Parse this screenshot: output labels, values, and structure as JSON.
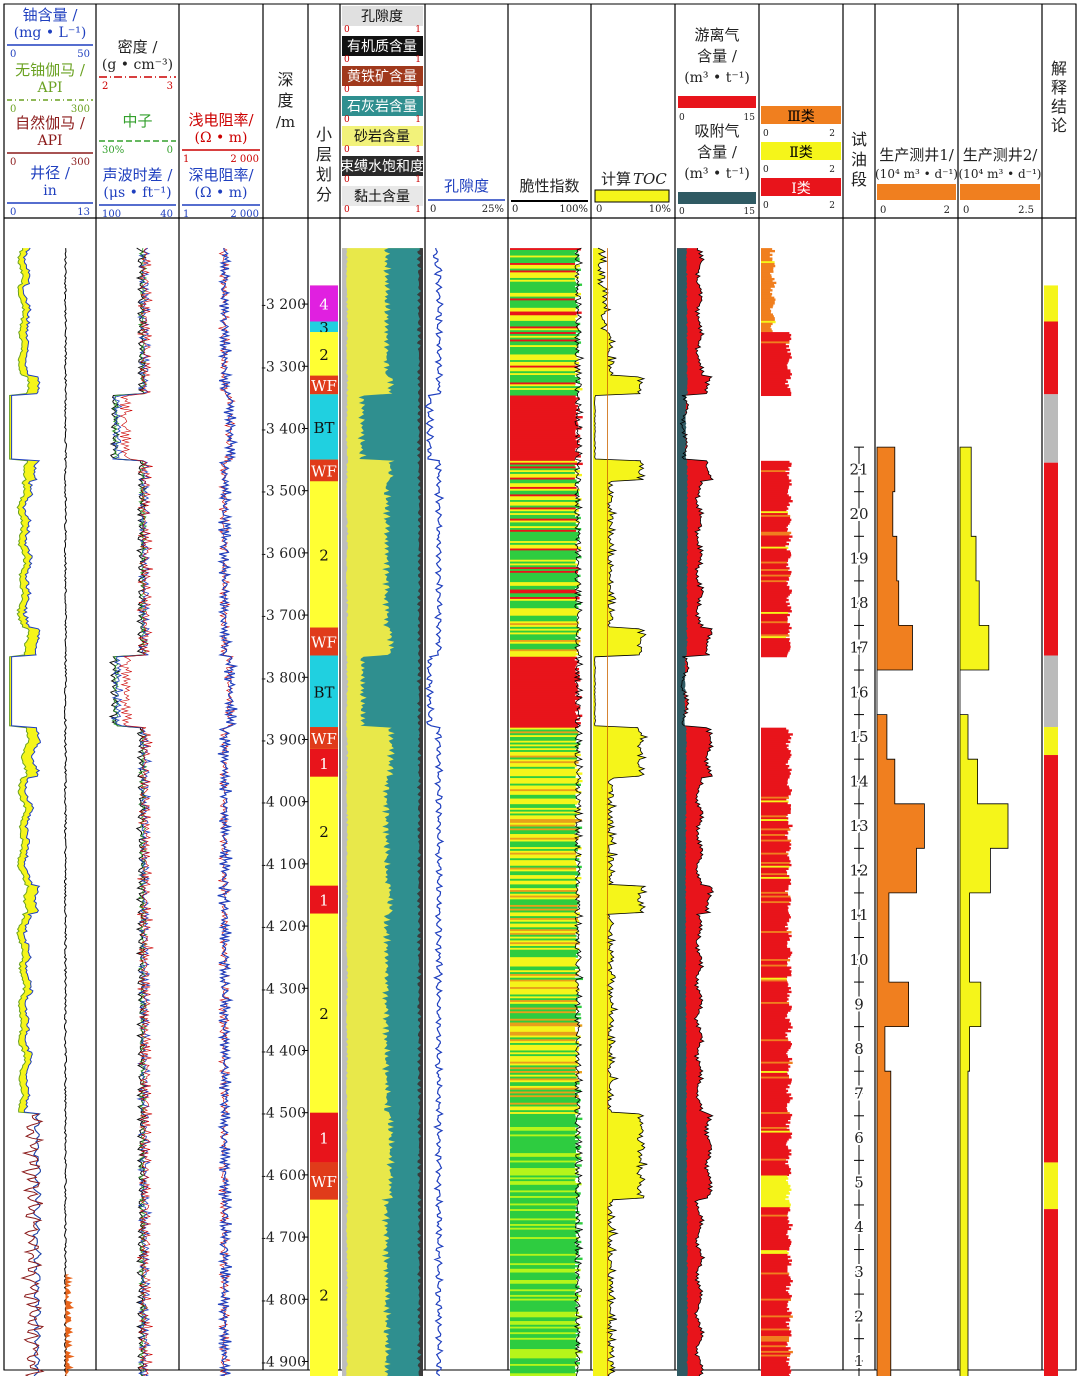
{
  "tracks": {
    "t1": {
      "curves": [
        {
          "label": "铀含量 /",
          "unit": "(mg • L⁻¹)",
          "min": "0",
          "max": "50",
          "color": "#1f3fbf"
        },
        {
          "label": "无铀伽马 /",
          "unit": "API",
          "min": "0",
          "max": "300",
          "color": "#6aa121"
        },
        {
          "label": "自然伽马 /",
          "unit": "API",
          "min": "0",
          "max": "300",
          "color": "#8b1a1a"
        },
        {
          "label": "井径 /",
          "unit": "in",
          "min": "0",
          "max": "13",
          "color": "#1f3fbf"
        }
      ]
    },
    "t2": {
      "curves": [
        {
          "label": "密度 /",
          "unit": "(g • cm⁻³)",
          "min": "2",
          "max": "3",
          "color": "#cc0000"
        },
        {
          "label": "中子",
          "unit": "",
          "min": "30%",
          "max": "0",
          "color": "#33a02c"
        },
        {
          "label": "声波时差 /",
          "unit": "(μs • ft⁻¹)",
          "min": "100",
          "max": "40",
          "color": "#1f3fbf"
        }
      ]
    },
    "t3": {
      "curves": [
        {
          "label": "浅电阻率/",
          "unit": "(Ω • m)",
          "min": "1",
          "max": "2 000",
          "color": "#cc0000"
        },
        {
          "label": "深电阻率/",
          "unit": "(Ω • m)",
          "min": "1",
          "max": "2 000",
          "color": "#1f3fbf"
        }
      ]
    },
    "depth": {
      "label": "深度",
      "unit": "/m"
    },
    "layers": {
      "label": "小层划分"
    },
    "mineral": {
      "items": [
        {
          "label": "孔隙度",
          "color": "#d8d8d8"
        },
        {
          "label": "有机质含量",
          "color": "#111111"
        },
        {
          "label": "黄铁矿含量",
          "color": "#a0391c"
        },
        {
          "label": "石灰岩含量",
          "color": "#2f8f8f"
        },
        {
          "label": "砂岩含量",
          "color": "#e8e84a"
        },
        {
          "label": "束缚水饱和度",
          "color": "#2a2a2a"
        },
        {
          "label": "黏土含量",
          "color": "#bdbdbd"
        }
      ],
      "scale_min": "0",
      "scale_max": "1"
    },
    "porosity": {
      "label": "孔隙度",
      "min": "0",
      "max": "25%"
    },
    "brittle": {
      "label": "脆性指数",
      "min": "0",
      "max": "100%"
    },
    "toc": {
      "label": "计算",
      "label_italic": "TOC",
      "min": "0",
      "max": "10%"
    },
    "gas": {
      "free_label": "游离气",
      "free_label2": "含量 /",
      "free_unit": "(m³ • t⁻¹)",
      "ads_label": "吸附气",
      "ads_label2": "含量 /",
      "ads_unit": "(m³ • t⁻¹)",
      "min": "0",
      "max": "15"
    },
    "class": {
      "items": [
        {
          "label": "Ⅲ类",
          "min": "0",
          "max": "2",
          "color": "#f07f1f"
        },
        {
          "label": "Ⅱ类",
          "min": "0",
          "max": "2",
          "color": "#f5f51a"
        },
        {
          "label": "Ⅰ类",
          "min": "0",
          "max": "2",
          "color": "#e8141b"
        }
      ]
    },
    "test": {
      "label": "试油段"
    },
    "prod1": {
      "label": "生产测井1/",
      "unit": "(10⁴ m³ • d⁻¹)",
      "min": "0",
      "max": "2"
    },
    "prod2": {
      "label": "生产测井2/",
      "unit": "(10⁴ m³ • d⁻¹)",
      "min": "0",
      "max": "2.5"
    },
    "interp": {
      "label": "解释结论"
    }
  },
  "chart_data": {
    "type": "well-log",
    "depth_range": [
      3100,
      4950
    ],
    "depth_ticks": [
      "3 200",
      "3 300",
      "3 400",
      "3 500",
      "3 600",
      "3 700",
      "3 800",
      "3 900",
      "4 000",
      "4 100",
      "4 200",
      "4 300",
      "4 400",
      "4 500",
      "4 600",
      "4 700",
      "4 800",
      "4 900"
    ],
    "layers": [
      {
        "label": "4",
        "top": 3170,
        "bottom": 3228,
        "color": "#e020e0"
      },
      {
        "label": "3",
        "top": 3228,
        "bottom": 3245,
        "color": "#20d0e0"
      },
      {
        "label": "2",
        "top": 3245,
        "bottom": 3315,
        "color": "#ffff33"
      },
      {
        "label": "WF",
        "top": 3315,
        "bottom": 3345,
        "color": "#e03b1a"
      },
      {
        "label": "BT",
        "top": 3345,
        "bottom": 3450,
        "color": "#20d0e0"
      },
      {
        "label": "WF",
        "top": 3450,
        "bottom": 3485,
        "color": "#e03b1a"
      },
      {
        "label": "2",
        "top": 3485,
        "bottom": 3720,
        "color": "#ffff33"
      },
      {
        "label": "WF",
        "top": 3720,
        "bottom": 3765,
        "color": "#e03b1a"
      },
      {
        "label": "BT",
        "top": 3765,
        "bottom": 3880,
        "color": "#20d0e0"
      },
      {
        "label": "WF",
        "top": 3880,
        "bottom": 3915,
        "color": "#e03b1a"
      },
      {
        "label": "1",
        "top": 3915,
        "bottom": 3960,
        "color": "#e8141b"
      },
      {
        "label": "2",
        "top": 3960,
        "bottom": 4135,
        "color": "#ffff33"
      },
      {
        "label": "1",
        "top": 4135,
        "bottom": 4180,
        "color": "#e8141b"
      },
      {
        "label": "2",
        "top": 4180,
        "bottom": 4500,
        "color": "#ffff33"
      },
      {
        "label": "1",
        "top": 4500,
        "bottom": 4580,
        "color": "#e8141b"
      },
      {
        "label": "WF",
        "top": 4580,
        "bottom": 4640,
        "color": "#e03b1a"
      },
      {
        "label": "2",
        "top": 4640,
        "bottom": 4945,
        "color": "#ffff33"
      }
    ],
    "test_intervals": [
      "21",
      "20",
      "19",
      "18",
      "17",
      "16",
      "15",
      "14",
      "13",
      "12",
      "11",
      "10",
      "9",
      "8",
      "7",
      "6",
      "5",
      "4",
      "3",
      "2",
      "1"
    ],
    "test_range": [
      3430,
      4935
    ],
    "production_1": [
      0.45,
      0.4,
      0.5,
      0.55,
      0.9,
      0.0,
      0.25,
      0.45,
      1.2,
      1.0,
      0.3,
      0.3,
      0.8,
      0.2,
      0.35,
      0.35,
      0.35,
      0.35,
      0.35,
      0.35,
      0.35
    ],
    "production_2": [
      0.35,
      0.35,
      0.5,
      0.6,
      0.9,
      0.0,
      0.25,
      0.55,
      1.5,
      0.95,
      0.3,
      0.3,
      0.65,
      0.3,
      0.25,
      0.25,
      0.25,
      0.25,
      0.25,
      0.25,
      0.25
    ],
    "interpretation": [
      {
        "top": 3170,
        "bottom": 3228,
        "color": "#f5f51a"
      },
      {
        "top": 3228,
        "bottom": 3345,
        "color": "#e8141b"
      },
      {
        "top": 3345,
        "bottom": 3455,
        "color": "#bbbbbb"
      },
      {
        "top": 3455,
        "bottom": 3765,
        "color": "#e8141b"
      },
      {
        "top": 3765,
        "bottom": 3880,
        "color": "#bbbbbb"
      },
      {
        "top": 3880,
        "bottom": 3925,
        "color": "#f5f51a"
      },
      {
        "top": 3925,
        "bottom": 4580,
        "color": "#e8141b"
      },
      {
        "top": 4580,
        "bottom": 4655,
        "color": "#f5f51a"
      },
      {
        "top": 4655,
        "bottom": 4945,
        "color": "#e8141b"
      }
    ]
  }
}
